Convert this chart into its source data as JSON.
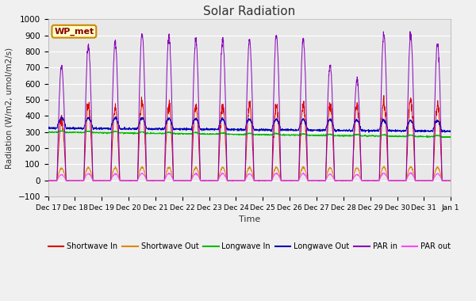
{
  "title": "Solar Radiation",
  "ylabel": "Radiation (W/m2, umol/m2/s)",
  "xlabel": "Time",
  "ylim": [
    -100,
    1000
  ],
  "yticks": [
    -100,
    0,
    100,
    200,
    300,
    400,
    500,
    600,
    700,
    800,
    900,
    1000
  ],
  "fig_bg_color": "#f0f0f0",
  "plot_bg_color": "#e8e8e8",
  "series": [
    "Shortwave In",
    "Shortwave Out",
    "Longwave In",
    "Longwave Out",
    "PAR in",
    "PAR out"
  ],
  "colors": [
    "#dd0000",
    "#dd8800",
    "#00bb00",
    "#0000bb",
    "#8800bb",
    "#ff44ff"
  ],
  "wp_met_label": "WP_met",
  "wp_met_bg": "#ffffcc",
  "wp_met_border": "#cc8800",
  "wp_met_text": "#880000",
  "n_days": 15,
  "tick_labels": [
    "Dec 17",
    "Dec 18",
    "Dec 19",
    "Dec 20",
    "Dec 21",
    "Dec 22",
    "Dec 23",
    "Dec 24",
    "Dec 25",
    "Dec 26",
    "Dec 27",
    "Dec 28",
    "Dec 29",
    "Dec 30",
    "Dec 31",
    "Jan 1"
  ],
  "grid_color": "#ffffff"
}
